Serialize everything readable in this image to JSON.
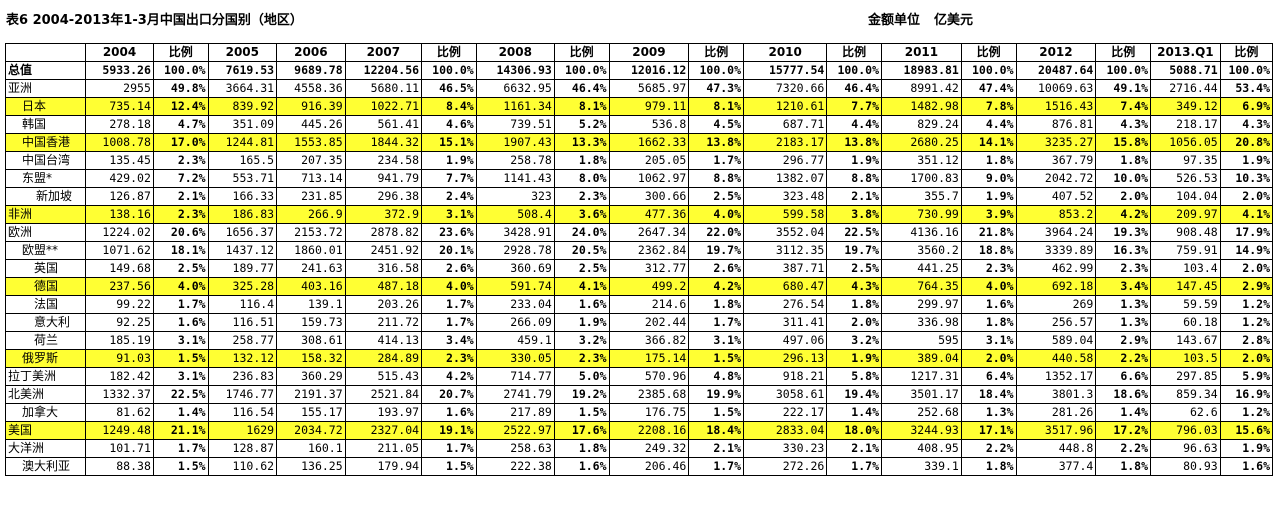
{
  "title": "表6   2004-2013年1-3月中国出口分国别（地区）",
  "unit_label": "金额单位",
  "unit_value": "亿美元",
  "table": {
    "headers": [
      "",
      "2004",
      "比例",
      "2005",
      "2006",
      "2007",
      "比例",
      "2008",
      "比例",
      "2009",
      "比例",
      "2010",
      "比例",
      "2011",
      "比例",
      "2012",
      "比例",
      "2013.Q1",
      "比例"
    ],
    "rows": [
      {
        "name": "总值",
        "indent": 0,
        "hl": false,
        "cells": [
          "5933.26",
          "100.0%",
          "7619.53",
          "9689.78",
          "12204.56",
          "100.0%",
          "14306.93",
          "100.0%",
          "12016.12",
          "100.0%",
          "15777.54",
          "100.0%",
          "18983.81",
          "100.0%",
          "20487.64",
          "100.0%",
          "5088.71",
          "100.0%"
        ]
      },
      {
        "name": "亚洲",
        "indent": 0,
        "hl": false,
        "cells": [
          "2955",
          "49.8%",
          "3664.31",
          "4558.36",
          "5680.11",
          "46.5%",
          "6632.95",
          "46.4%",
          "5685.97",
          "47.3%",
          "7320.66",
          "46.4%",
          "8991.42",
          "47.4%",
          "10069.63",
          "49.1%",
          "2716.44",
          "53.4%"
        ]
      },
      {
        "name": "日本",
        "indent": 1,
        "hl": true,
        "cells": [
          "735.14",
          "12.4%",
          "839.92",
          "916.39",
          "1022.71",
          "8.4%",
          "1161.34",
          "8.1%",
          "979.11",
          "8.1%",
          "1210.61",
          "7.7%",
          "1482.98",
          "7.8%",
          "1516.43",
          "7.4%",
          "349.12",
          "6.9%"
        ]
      },
      {
        "name": "韩国",
        "indent": 1,
        "hl": false,
        "cells": [
          "278.18",
          "4.7%",
          "351.09",
          "445.26",
          "561.41",
          "4.6%",
          "739.51",
          "5.2%",
          "536.8",
          "4.5%",
          "687.71",
          "4.4%",
          "829.24",
          "4.4%",
          "876.81",
          "4.3%",
          "218.17",
          "4.3%"
        ]
      },
      {
        "name": "中国香港",
        "indent": 1,
        "hl": true,
        "cells": [
          "1008.78",
          "17.0%",
          "1244.81",
          "1553.85",
          "1844.32",
          "15.1%",
          "1907.43",
          "13.3%",
          "1662.33",
          "13.8%",
          "2183.17",
          "13.8%",
          "2680.25",
          "14.1%",
          "3235.27",
          "15.8%",
          "1056.05",
          "20.8%"
        ]
      },
      {
        "name": "中国台湾",
        "indent": 1,
        "hl": false,
        "cells": [
          "135.45",
          "2.3%",
          "165.5",
          "207.35",
          "234.58",
          "1.9%",
          "258.78",
          "1.8%",
          "205.05",
          "1.7%",
          "296.77",
          "1.9%",
          "351.12",
          "1.8%",
          "367.79",
          "1.8%",
          "97.35",
          "1.9%"
        ]
      },
      {
        "name": "东盟*",
        "indent": 1,
        "hl": false,
        "cells": [
          "429.02",
          "7.2%",
          "553.71",
          "713.14",
          "941.79",
          "7.7%",
          "1141.43",
          "8.0%",
          "1062.97",
          "8.8%",
          "1382.07",
          "8.8%",
          "1700.83",
          "9.0%",
          "2042.72",
          "10.0%",
          "526.53",
          "10.3%"
        ]
      },
      {
        "name": "新加坡",
        "indent": 2,
        "hl": false,
        "cells": [
          "126.87",
          "2.1%",
          "166.33",
          "231.85",
          "296.38",
          "2.4%",
          "323",
          "2.3%",
          "300.66",
          "2.5%",
          "323.48",
          "2.1%",
          "355.7",
          "1.9%",
          "407.52",
          "2.0%",
          "104.04",
          "2.0%"
        ]
      },
      {
        "name": "非洲",
        "indent": 0,
        "hl": true,
        "cells": [
          "138.16",
          "2.3%",
          "186.83",
          "266.9",
          "372.9",
          "3.1%",
          "508.4",
          "3.6%",
          "477.36",
          "4.0%",
          "599.58",
          "3.8%",
          "730.99",
          "3.9%",
          "853.2",
          "4.2%",
          "209.97",
          "4.1%"
        ]
      },
      {
        "name": "欧洲",
        "indent": 0,
        "hl": false,
        "cells": [
          "1224.02",
          "20.6%",
          "1656.37",
          "2153.72",
          "2878.82",
          "23.6%",
          "3428.91",
          "24.0%",
          "2647.34",
          "22.0%",
          "3552.04",
          "22.5%",
          "4136.16",
          "21.8%",
          "3964.24",
          "19.3%",
          "908.48",
          "17.9%"
        ]
      },
      {
        "name": "欧盟**",
        "indent": 1,
        "hl": false,
        "cells": [
          "1071.62",
          "18.1%",
          "1437.12",
          "1860.01",
          "2451.92",
          "20.1%",
          "2928.78",
          "20.5%",
          "2362.84",
          "19.7%",
          "3112.35",
          "19.7%",
          "3560.2",
          "18.8%",
          "3339.89",
          "16.3%",
          "759.91",
          "14.9%"
        ]
      },
      {
        "name": "英国",
        "indent": 3,
        "hl": false,
        "cells": [
          "149.68",
          "2.5%",
          "189.77",
          "241.63",
          "316.58",
          "2.6%",
          "360.69",
          "2.5%",
          "312.77",
          "2.6%",
          "387.71",
          "2.5%",
          "441.25",
          "2.3%",
          "462.99",
          "2.3%",
          "103.4",
          "2.0%"
        ]
      },
      {
        "name": "德国",
        "indent": 3,
        "hl": true,
        "cells": [
          "237.56",
          "4.0%",
          "325.28",
          "403.16",
          "487.18",
          "4.0%",
          "591.74",
          "4.1%",
          "499.2",
          "4.2%",
          "680.47",
          "4.3%",
          "764.35",
          "4.0%",
          "692.18",
          "3.4%",
          "147.45",
          "2.9%"
        ]
      },
      {
        "name": "法国",
        "indent": 3,
        "hl": false,
        "cells": [
          "99.22",
          "1.7%",
          "116.4",
          "139.1",
          "203.26",
          "1.7%",
          "233.04",
          "1.6%",
          "214.6",
          "1.8%",
          "276.54",
          "1.8%",
          "299.97",
          "1.6%",
          "269",
          "1.3%",
          "59.59",
          "1.2%"
        ]
      },
      {
        "name": "意大利",
        "indent": 3,
        "hl": false,
        "cells": [
          "92.25",
          "1.6%",
          "116.51",
          "159.73",
          "211.72",
          "1.7%",
          "266.09",
          "1.9%",
          "202.44",
          "1.7%",
          "311.41",
          "2.0%",
          "336.98",
          "1.8%",
          "256.57",
          "1.3%",
          "60.18",
          "1.2%"
        ]
      },
      {
        "name": "荷兰",
        "indent": 3,
        "hl": false,
        "cells": [
          "185.19",
          "3.1%",
          "258.77",
          "308.61",
          "414.13",
          "3.4%",
          "459.1",
          "3.2%",
          "366.82",
          "3.1%",
          "497.06",
          "3.2%",
          "595",
          "3.1%",
          "589.04",
          "2.9%",
          "143.67",
          "2.8%"
        ]
      },
      {
        "name": "俄罗斯",
        "indent": 1,
        "hl": true,
        "cells": [
          "91.03",
          "1.5%",
          "132.12",
          "158.32",
          "284.89",
          "2.3%",
          "330.05",
          "2.3%",
          "175.14",
          "1.5%",
          "296.13",
          "1.9%",
          "389.04",
          "2.0%",
          "440.58",
          "2.2%",
          "103.5",
          "2.0%"
        ]
      },
      {
        "name": "拉丁美洲",
        "indent": 0,
        "hl": false,
        "cells": [
          "182.42",
          "3.1%",
          "236.83",
          "360.29",
          "515.43",
          "4.2%",
          "714.77",
          "5.0%",
          "570.96",
          "4.8%",
          "918.21",
          "5.8%",
          "1217.31",
          "6.4%",
          "1352.17",
          "6.6%",
          "297.85",
          "5.9%"
        ]
      },
      {
        "name": "北美洲",
        "indent": 0,
        "hl": false,
        "cells": [
          "1332.37",
          "22.5%",
          "1746.77",
          "2191.37",
          "2521.84",
          "20.7%",
          "2741.79",
          "19.2%",
          "2385.68",
          "19.9%",
          "3058.61",
          "19.4%",
          "3501.17",
          "18.4%",
          "3801.3",
          "18.6%",
          "859.34",
          "16.9%"
        ]
      },
      {
        "name": "加拿大",
        "indent": 1,
        "hl": false,
        "cells": [
          "81.62",
          "1.4%",
          "116.54",
          "155.17",
          "193.97",
          "1.6%",
          "217.89",
          "1.5%",
          "176.75",
          "1.5%",
          "222.17",
          "1.4%",
          "252.68",
          "1.3%",
          "281.26",
          "1.4%",
          "62.6",
          "1.2%"
        ]
      },
      {
        "name": "美国",
        "indent": 0,
        "hl": true,
        "cells": [
          "1249.48",
          "21.1%",
          "1629",
          "2034.72",
          "2327.04",
          "19.1%",
          "2522.97",
          "17.6%",
          "2208.16",
          "18.4%",
          "2833.04",
          "18.0%",
          "3244.93",
          "17.1%",
          "3517.96",
          "17.2%",
          "796.03",
          "15.6%"
        ]
      },
      {
        "name": "大洋洲",
        "indent": 0,
        "hl": false,
        "cells": [
          "101.71",
          "1.7%",
          "128.87",
          "160.1",
          "211.05",
          "1.7%",
          "258.63",
          "1.8%",
          "249.32",
          "2.1%",
          "330.23",
          "2.1%",
          "408.95",
          "2.2%",
          "448.8",
          "2.2%",
          "96.63",
          "1.9%"
        ]
      },
      {
        "name": "澳大利亚",
        "indent": 1,
        "hl": false,
        "cells": [
          "88.38",
          "1.5%",
          "110.62",
          "136.25",
          "179.94",
          "1.5%",
          "222.38",
          "1.6%",
          "206.46",
          "1.7%",
          "272.26",
          "1.7%",
          "339.1",
          "1.8%",
          "377.4",
          "1.8%",
          "80.93",
          "1.6%"
        ]
      }
    ]
  }
}
